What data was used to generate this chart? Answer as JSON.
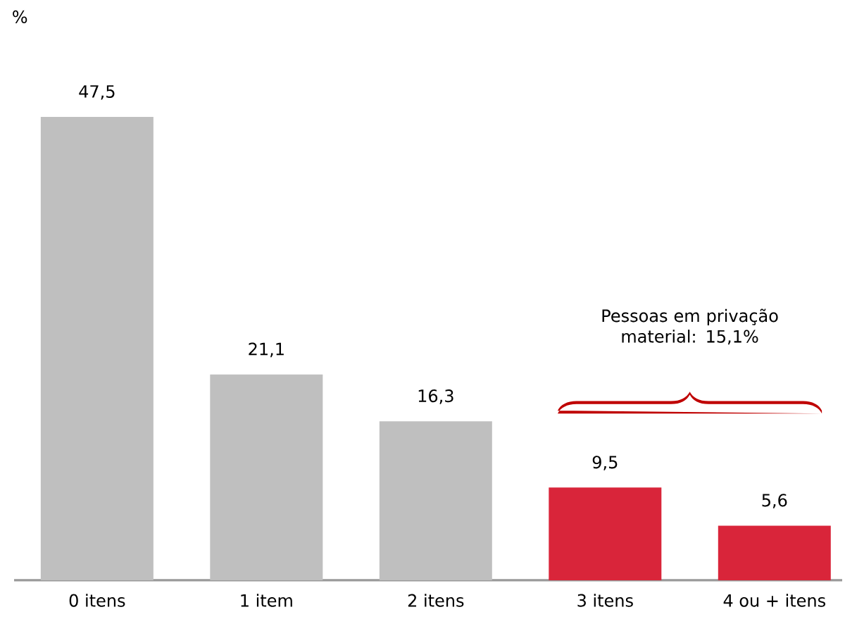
{
  "chart_data": {
    "type": "bar",
    "categories": [
      "0 itens",
      "1 item",
      "2 itens",
      "3 itens",
      "4 ou + itens"
    ],
    "values": [
      47.5,
      21.1,
      16.3,
      9.5,
      5.6
    ],
    "value_labels": [
      "47,5",
      "21,1",
      "16,3",
      "9,5",
      "5,6"
    ],
    "colors": [
      "#bfbfbf",
      "#bfbfbf",
      "#bfbfbf",
      "#d9253a",
      "#d9253a"
    ],
    "annotations": [
      "%",
      "Pessoas em privação material: 15,1%"
    ]
  }
}
